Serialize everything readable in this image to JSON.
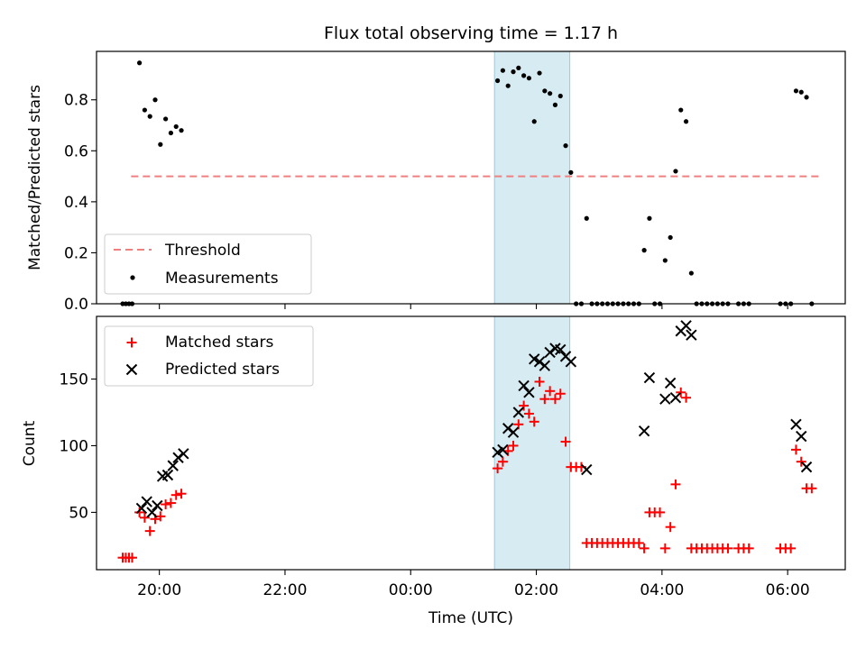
{
  "chart_data": [
    {
      "type": "scatter",
      "title": "Flux total observing time = 1.17 h",
      "xlabel": "",
      "ylabel": "Matched/Predicted stars",
      "xlim": [
        "19:00",
        "06:55"
      ],
      "ylim": [
        0,
        0.99
      ],
      "y_ticks": [
        "0.0",
        "0.2",
        "0.4",
        "0.6",
        "0.8"
      ],
      "x_ticks": [
        "20:00",
        "22:00",
        "00:00",
        "02:00",
        "04:00",
        "06:00"
      ],
      "highlight_span": [
        "01:20",
        "02:32"
      ],
      "legend": {
        "position": "lower-left",
        "entries": [
          "Threshold",
          "Measurements"
        ]
      },
      "series": [
        {
          "name": "Threshold",
          "style": "dashed-line",
          "color": "#f08080",
          "x": [
            "19:33",
            "06:33"
          ],
          "y": [
            0.5,
            0.5
          ]
        },
        {
          "name": "Measurements",
          "style": "dot",
          "color": "#000000",
          "points": [
            [
              "19:25",
              0.0
            ],
            [
              "19:28",
              0.0
            ],
            [
              "19:31",
              0.0
            ],
            [
              "19:34",
              0.0
            ],
            [
              "19:41",
              0.945
            ],
            [
              "19:46",
              0.76
            ],
            [
              "19:51",
              0.735
            ],
            [
              "19:56",
              0.8
            ],
            [
              "20:01",
              0.625
            ],
            [
              "20:06",
              0.725
            ],
            [
              "20:11",
              0.67
            ],
            [
              "20:16",
              0.695
            ],
            [
              "20:21",
              0.68
            ],
            [
              "01:23",
              0.875
            ],
            [
              "01:28",
              0.915
            ],
            [
              "01:33",
              0.855
            ],
            [
              "01:38",
              0.91
            ],
            [
              "01:43",
              0.925
            ],
            [
              "01:48",
              0.895
            ],
            [
              "01:53",
              0.885
            ],
            [
              "01:58",
              0.715
            ],
            [
              "02:03",
              0.905
            ],
            [
              "02:08",
              0.835
            ],
            [
              "02:13",
              0.825
            ],
            [
              "02:18",
              0.78
            ],
            [
              "02:23",
              0.815
            ],
            [
              "02:28",
              0.62
            ],
            [
              "02:33",
              0.515
            ],
            [
              "02:38",
              0.0
            ],
            [
              "02:43",
              0.0
            ],
            [
              "02:48",
              0.335
            ],
            [
              "02:53",
              0.0
            ],
            [
              "02:58",
              0.0
            ],
            [
              "03:03",
              0.0
            ],
            [
              "03:08",
              0.0
            ],
            [
              "03:13",
              0.0
            ],
            [
              "03:18",
              0.0
            ],
            [
              "03:23",
              0.0
            ],
            [
              "03:28",
              0.0
            ],
            [
              "03:33",
              0.0
            ],
            [
              "03:38",
              0.0
            ],
            [
              "03:43",
              0.21
            ],
            [
              "03:48",
              0.335
            ],
            [
              "03:53",
              0.0
            ],
            [
              "03:58",
              0.0
            ],
            [
              "04:03",
              0.17
            ],
            [
              "04:08",
              0.26
            ],
            [
              "04:13",
              0.52
            ],
            [
              "04:18",
              0.76
            ],
            [
              "04:23",
              0.715
            ],
            [
              "04:28",
              0.12
            ],
            [
              "04:33",
              0.0
            ],
            [
              "04:38",
              0.0
            ],
            [
              "04:43",
              0.0
            ],
            [
              "04:48",
              0.0
            ],
            [
              "04:53",
              0.0
            ],
            [
              "04:58",
              0.0
            ],
            [
              "05:03",
              0.0
            ],
            [
              "05:13",
              0.0
            ],
            [
              "05:18",
              0.0
            ],
            [
              "05:23",
              0.0
            ],
            [
              "05:53",
              0.0
            ],
            [
              "05:58",
              0.0
            ],
            [
              "06:03",
              0.0
            ],
            [
              "06:08",
              0.835
            ],
            [
              "06:13",
              0.83
            ],
            [
              "06:18",
              0.81
            ],
            [
              "06:23",
              0.0
            ]
          ]
        }
      ]
    },
    {
      "type": "scatter",
      "title": "",
      "xlabel": "Time (UTC)",
      "ylabel": "Count",
      "xlim": [
        "19:00",
        "06:55"
      ],
      "ylim": [
        7,
        197
      ],
      "y_ticks": [
        "50",
        "100",
        "150"
      ],
      "x_ticks": [
        "20:00",
        "22:00",
        "00:00",
        "02:00",
        "04:00",
        "06:00"
      ],
      "highlight_span": [
        "01:20",
        "02:32"
      ],
      "legend": {
        "position": "upper-left",
        "entries": [
          "Matched stars",
          "Predicted stars"
        ]
      },
      "series": [
        {
          "name": "Matched stars",
          "marker": "+",
          "color": "#ff0000",
          "points": [
            [
              "19:25",
              16
            ],
            [
              "19:28",
              16
            ],
            [
              "19:31",
              16
            ],
            [
              "19:34",
              16
            ],
            [
              "19:41",
              50
            ],
            [
              "19:46",
              46
            ],
            [
              "19:51",
              36
            ],
            [
              "19:56",
              45
            ],
            [
              "20:01",
              47
            ],
            [
              "20:06",
              56
            ],
            [
              "20:11",
              57
            ],
            [
              "20:16",
              63
            ],
            [
              "20:21",
              64
            ],
            [
              "01:23",
              83
            ],
            [
              "01:28",
              88
            ],
            [
              "01:33",
              96
            ],
            [
              "01:38",
              100
            ],
            [
              "01:43",
              116
            ],
            [
              "01:48",
              130
            ],
            [
              "01:53",
              124
            ],
            [
              "01:58",
              118
            ],
            [
              "02:03",
              148
            ],
            [
              "02:08",
              135
            ],
            [
              "02:13",
              141
            ],
            [
              "02:18",
              135
            ],
            [
              "02:23",
              139
            ],
            [
              "02:28",
              103
            ],
            [
              "02:33",
              84
            ],
            [
              "02:38",
              84
            ],
            [
              "02:43",
              84
            ],
            [
              "02:48",
              27
            ],
            [
              "02:53",
              27
            ],
            [
              "02:58",
              27
            ],
            [
              "03:03",
              27
            ],
            [
              "03:08",
              27
            ],
            [
              "03:13",
              27
            ],
            [
              "03:18",
              27
            ],
            [
              "03:23",
              27
            ],
            [
              "03:28",
              27
            ],
            [
              "03:33",
              27
            ],
            [
              "03:38",
              27
            ],
            [
              "03:43",
              23
            ],
            [
              "03:48",
              50
            ],
            [
              "03:53",
              50
            ],
            [
              "03:58",
              50
            ],
            [
              "04:03",
              23
            ],
            [
              "04:08",
              39
            ],
            [
              "04:13",
              71
            ],
            [
              "04:18",
              140
            ],
            [
              "04:23",
              136
            ],
            [
              "04:28",
              23
            ],
            [
              "04:33",
              23
            ],
            [
              "04:38",
              23
            ],
            [
              "04:43",
              23
            ],
            [
              "04:48",
              23
            ],
            [
              "04:53",
              23
            ],
            [
              "04:58",
              23
            ],
            [
              "05:03",
              23
            ],
            [
              "05:13",
              23
            ],
            [
              "05:18",
              23
            ],
            [
              "05:23",
              23
            ],
            [
              "05:53",
              23
            ],
            [
              "05:58",
              23
            ],
            [
              "06:03",
              23
            ],
            [
              "06:08",
              97
            ],
            [
              "06:13",
              88
            ],
            [
              "06:18",
              68
            ],
            [
              "06:23",
              68
            ]
          ]
        },
        {
          "name": "Predicted stars",
          "marker": "x",
          "color": "#000000",
          "points": [
            [
              "19:43",
              53
            ],
            [
              "19:48",
              58
            ],
            [
              "19:53",
              50
            ],
            [
              "19:58",
              55
            ],
            [
              "20:03",
              77
            ],
            [
              "20:08",
              78
            ],
            [
              "20:13",
              85
            ],
            [
              "20:18",
              91
            ],
            [
              "20:23",
              94
            ],
            [
              "01:23",
              95
            ],
            [
              "01:28",
              97
            ],
            [
              "01:33",
              113
            ],
            [
              "01:38",
              110
            ],
            [
              "01:43",
              125
            ],
            [
              "01:48",
              145
            ],
            [
              "01:53",
              140
            ],
            [
              "01:58",
              165
            ],
            [
              "02:03",
              163
            ],
            [
              "02:08",
              160
            ],
            [
              "02:13",
              170
            ],
            [
              "02:18",
              173
            ],
            [
              "02:23",
              172
            ],
            [
              "02:28",
              167
            ],
            [
              "02:33",
              163
            ],
            [
              "02:48",
              82
            ],
            [
              "03:43",
              111
            ],
            [
              "03:48",
              151
            ],
            [
              "04:03",
              135
            ],
            [
              "04:08",
              147
            ],
            [
              "04:13",
              136
            ],
            [
              "04:18",
              186
            ],
            [
              "04:23",
              190
            ],
            [
              "04:28",
              183
            ],
            [
              "06:08",
              116
            ],
            [
              "06:13",
              107
            ],
            [
              "06:18",
              84
            ]
          ]
        }
      ]
    }
  ]
}
